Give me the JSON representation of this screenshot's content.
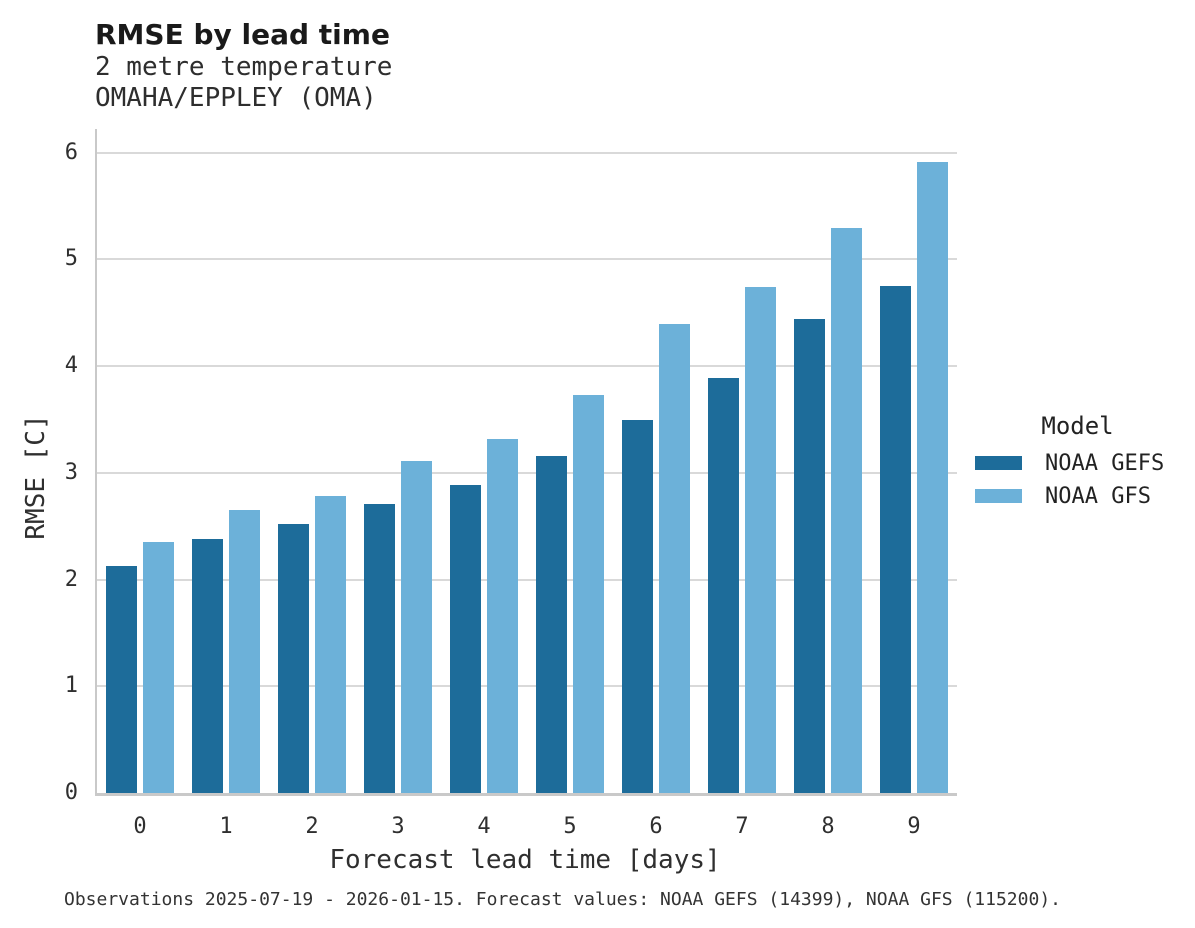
{
  "chart_data": {
    "type": "bar",
    "title": "RMSE by lead time",
    "subtitle": [
      "2 metre temperature",
      "OMAHA/EPPLEY (OMA)"
    ],
    "categories": [
      "0",
      "1",
      "2",
      "3",
      "4",
      "5",
      "6",
      "7",
      "8",
      "9"
    ],
    "series": [
      {
        "name": "NOAA GEFS",
        "color": "#1d6c9a",
        "values": [
          2.13,
          2.38,
          2.52,
          2.71,
          2.89,
          3.16,
          3.49,
          3.89,
          4.44,
          4.75
        ]
      },
      {
        "name": "NOAA GFS",
        "color": "#6cb1d9",
        "values": [
          2.35,
          2.65,
          2.78,
          3.11,
          3.32,
          3.73,
          4.39,
          4.74,
          5.29,
          5.91
        ]
      }
    ],
    "xlabel": "Forecast lead time [days]",
    "ylabel": "RMSE [C]",
    "ylim": [
      0,
      6.22
    ],
    "yticks": [
      0,
      1,
      2,
      3,
      4,
      5,
      6
    ],
    "grid": "horizontal",
    "legend": {
      "title": "Model",
      "position": "right"
    },
    "footnote": "Observations 2025-07-19 - 2026-01-15. Forecast values: NOAA GEFS (14399), NOAA GFS (115200)."
  },
  "colors": {
    "grid": "#d9d9d9",
    "spine": "#c9c9c9",
    "title_text": "#1a1a1a",
    "body_text": "#2f2f2f"
  }
}
